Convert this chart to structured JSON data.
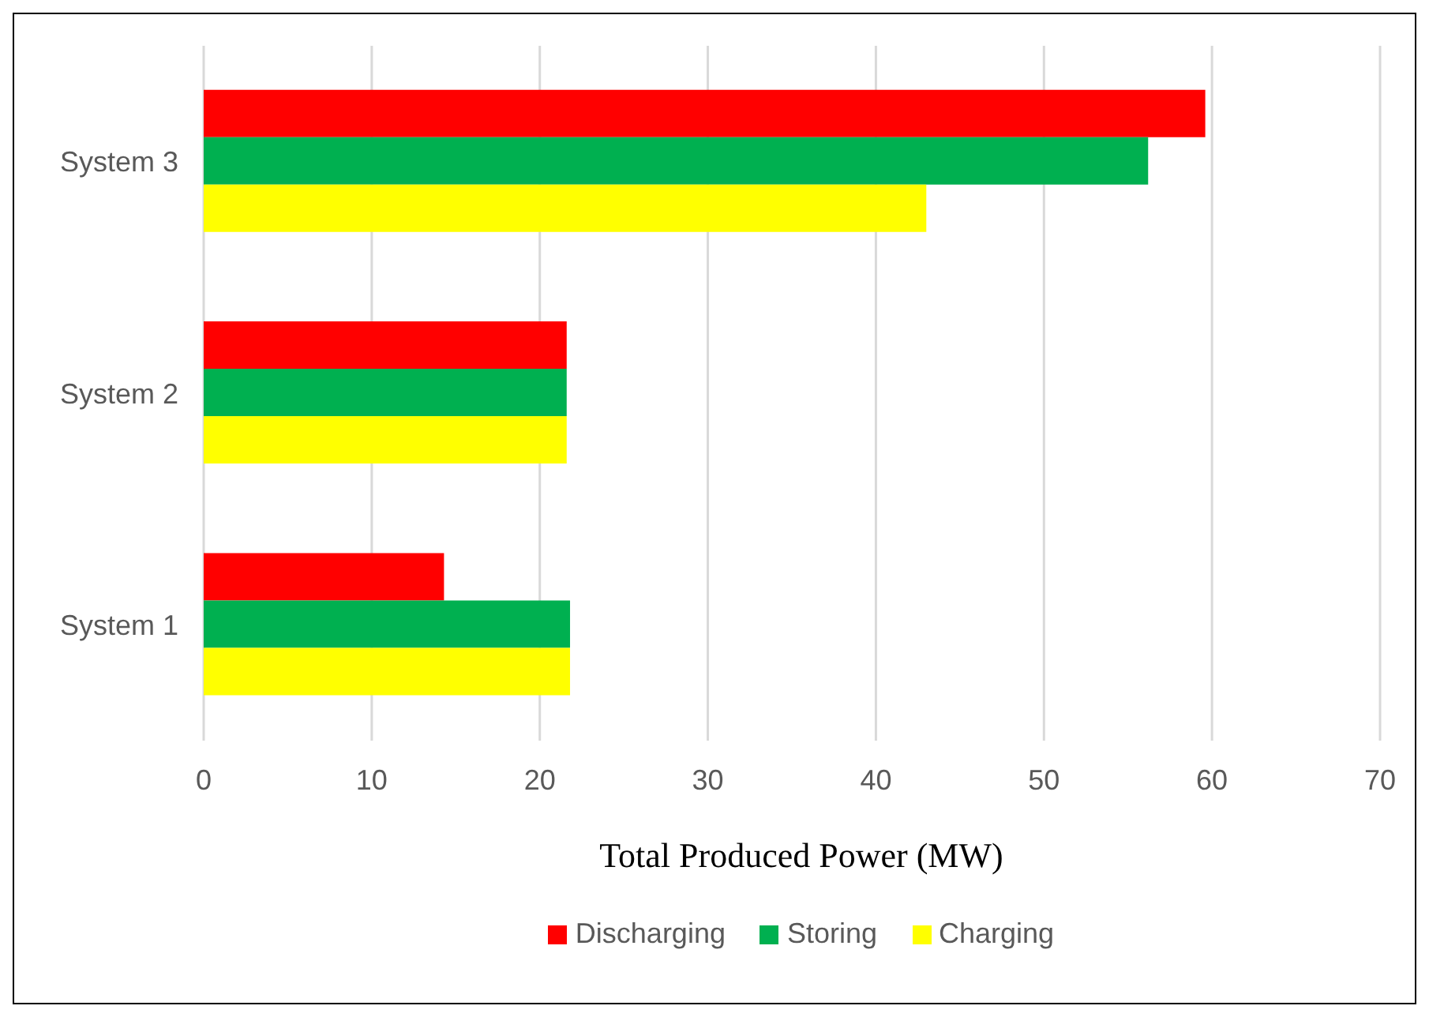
{
  "chart_data": {
    "type": "bar",
    "orientation": "horizontal",
    "xlabel": "Total Produced Power (MW)",
    "categories": [
      "System 3",
      "System 2",
      "System 1"
    ],
    "series": [
      {
        "name": "Discharging",
        "color": "#ff0000",
        "values": [
          59.6,
          21.6,
          14.3
        ]
      },
      {
        "name": "Storing",
        "color": "#00b050",
        "values": [
          56.2,
          21.6,
          21.8
        ]
      },
      {
        "name": "Charging",
        "color": "#ffff00",
        "values": [
          43.0,
          21.6,
          21.8
        ]
      }
    ],
    "xlim": [
      0,
      70
    ],
    "xticks": [
      0,
      10,
      20,
      30,
      40,
      50,
      60,
      70
    ],
    "grid": "x",
    "legend": "bottom"
  }
}
